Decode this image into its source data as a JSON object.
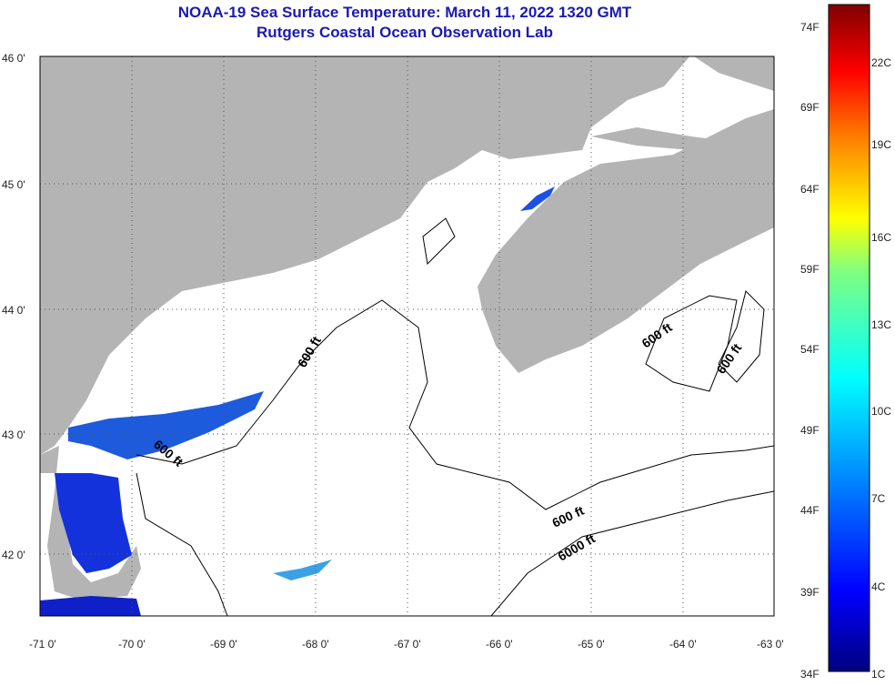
{
  "title": "NOAA-19 Sea Surface Temperature:  March 11, 2022 1320 GMT",
  "subtitle": "Rutgers Coastal Ocean Observation Lab",
  "map": {
    "lon_labels": [
      "-71 0'",
      "-70 0'",
      "-69 0'",
      "-68 0'",
      "-67 0'",
      "-66 0'",
      "-65 0'",
      "-64 0'",
      "-63 0'"
    ],
    "lat_labels": [
      "46 0'",
      "45 0'",
      "44 0'",
      "43 0'",
      "42 0'"
    ],
    "contour_labels": [
      "600 ft",
      "600 ft",
      "600 ft",
      "600 ft",
      "600 ft",
      "6000 ft"
    ],
    "colors": {
      "land": "#b4b4b4",
      "ocean": "#ffffff",
      "frame": "#000000"
    }
  },
  "colorbar": {
    "f_labels": [
      "74F",
      "69F",
      "64F",
      "59F",
      "54F",
      "49F",
      "44F",
      "39F",
      "34F"
    ],
    "c_labels": [
      "22C",
      "19C",
      "16C",
      "13C",
      "10C",
      "7C",
      "4C",
      "1C"
    ],
    "colors": [
      "#00007f",
      "#0000ff",
      "#007fff",
      "#00ffff",
      "#7fff7f",
      "#ffff00",
      "#ff7f00",
      "#ff0000",
      "#7f0000"
    ]
  }
}
